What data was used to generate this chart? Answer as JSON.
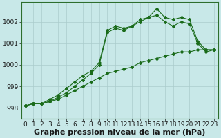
{
  "title": "Graphe pression niveau de la mer (hPa)",
  "background_color": "#c8e8e8",
  "grid_color": "#aacccc",
  "line_color": "#1a6b1a",
  "xlim": [
    -0.5,
    23.5
  ],
  "ylim": [
    997.5,
    1002.9
  ],
  "yticks": [
    998,
    999,
    1000,
    1001,
    1002
  ],
  "xticks": [
    0,
    1,
    2,
    3,
    4,
    5,
    6,
    7,
    8,
    9,
    10,
    11,
    12,
    13,
    14,
    15,
    16,
    17,
    18,
    19,
    20,
    21,
    22,
    23
  ],
  "series": [
    [
      998.1,
      998.2,
      998.2,
      998.3,
      998.4,
      998.6,
      998.8,
      999.0,
      999.2,
      999.4,
      999.6,
      999.7,
      999.8,
      999.9,
      1000.1,
      1000.2,
      1000.3,
      1000.4,
      1000.5,
      1000.6,
      1000.6,
      1000.7,
      1000.7,
      1000.7
    ],
    [
      998.1,
      998.2,
      998.2,
      998.3,
      998.5,
      998.7,
      999.0,
      999.3,
      999.6,
      1000.0,
      1001.5,
      1001.7,
      1001.6,
      1001.8,
      1002.0,
      1002.2,
      1002.3,
      1002.0,
      1001.8,
      1002.0,
      1001.9,
      1001.0,
      1000.6,
      1000.7
    ],
    [
      998.1,
      998.2,
      998.2,
      998.4,
      998.6,
      998.9,
      999.2,
      999.5,
      999.7,
      1000.1,
      1001.6,
      1001.8,
      1001.7,
      1001.8,
      1002.1,
      1002.2,
      1002.6,
      1002.2,
      1002.1,
      1002.2,
      1002.1,
      1001.1,
      1000.7,
      1000.7
    ]
  ],
  "tick_fontsize": 6.5,
  "label_fontsize": 8.0,
  "figsize": [
    3.2,
    2.0
  ],
  "dpi": 100
}
